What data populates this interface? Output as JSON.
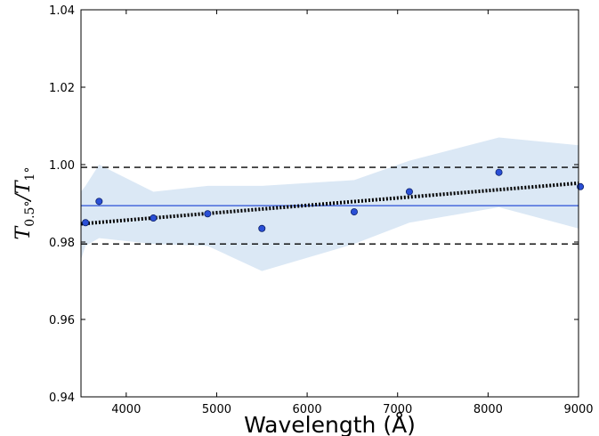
{
  "chart_data": {
    "type": "scatter",
    "title": "",
    "xlabel": "Wavelength (Å)",
    "ylabel": {
      "main": "T",
      "sub1": "0.5°",
      "sep": "/T",
      "sub2": "1°"
    },
    "xlim": [
      3500,
      9000
    ],
    "ylim": [
      0.94,
      1.04
    ],
    "xticks": [
      4000,
      5000,
      6000,
      7000,
      8000,
      9000
    ],
    "yticks": [
      0.94,
      0.96,
      0.98,
      1.0,
      1.02,
      1.04
    ],
    "ytick_labels": [
      "0.94",
      "0.96",
      "0.98",
      "1.00",
      "1.02",
      "1.04"
    ],
    "grid": false,
    "series": [
      {
        "kind": "points",
        "color": "#2a4fd6",
        "edge_color": "#0b1f66",
        "x": [
          3550,
          3700,
          4300,
          4900,
          5500,
          6520,
          7130,
          8120,
          9020
        ],
        "y": [
          0.985,
          0.9905,
          0.9862,
          0.9873,
          0.9835,
          0.9878,
          0.993,
          0.998,
          0.9943
        ]
      },
      {
        "kind": "band",
        "color": "#dbe8f5",
        "x": [
          3500,
          3550,
          3700,
          4300,
          4900,
          5500,
          6520,
          7130,
          8120,
          9000
        ],
        "upper": [
          0.993,
          0.9945,
          1.0,
          0.993,
          0.9945,
          0.9945,
          0.996,
          1.001,
          1.007,
          1.005
        ],
        "lower": [
          0.9755,
          0.979,
          0.981,
          0.9795,
          0.979,
          0.9725,
          0.9795,
          0.985,
          0.989,
          0.9835
        ]
      },
      {
        "kind": "hline",
        "color": "#2a4fd6",
        "style": "solid",
        "y": 0.9894
      },
      {
        "kind": "hline",
        "color": "#000000",
        "style": "dashed",
        "y": 0.9993
      },
      {
        "kind": "hline",
        "color": "#000000",
        "style": "dashed",
        "y": 0.9795
      },
      {
        "kind": "fit",
        "color": "#000000",
        "style": "dotted",
        "x": [
          3500,
          9000
        ],
        "y": [
          0.9847,
          0.9952
        ]
      }
    ]
  }
}
